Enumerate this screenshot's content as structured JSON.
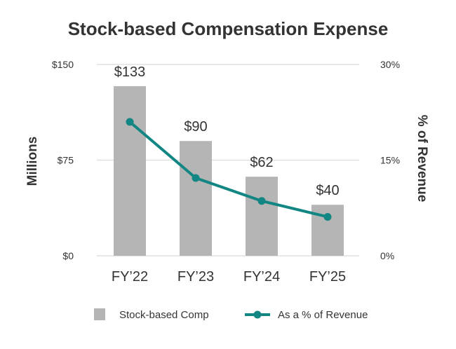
{
  "chart_data": {
    "type": "bar",
    "title": "Stock-based Compensation Expense",
    "categories": [
      "FY’22",
      "FY’23",
      "FY’24",
      "FY’25"
    ],
    "series": [
      {
        "name": "Stock-based Comp",
        "type": "bar",
        "axis": "left",
        "values": [
          133,
          90,
          62,
          40
        ],
        "labels": [
          "$133",
          "$90",
          "$62",
          "$40"
        ],
        "color": "#b5b5b5"
      },
      {
        "name": "As a % of Revenue",
        "type": "line",
        "axis": "right",
        "values": [
          21.0,
          12.2,
          8.6,
          6.1
        ],
        "color": "#128682"
      }
    ],
    "ylabel": "Millions",
    "y2label": "% of Revenue",
    "ylim": [
      0,
      150
    ],
    "y2lim": [
      0,
      30
    ],
    "yticks": [
      0,
      75,
      150
    ],
    "ytick_labels": [
      "$0",
      "$75",
      "$150"
    ],
    "y2ticks": [
      0,
      15,
      30
    ],
    "y2tick_labels": [
      "0%",
      "15%",
      "30%"
    ],
    "grid": true,
    "legend_position": "bottom"
  }
}
